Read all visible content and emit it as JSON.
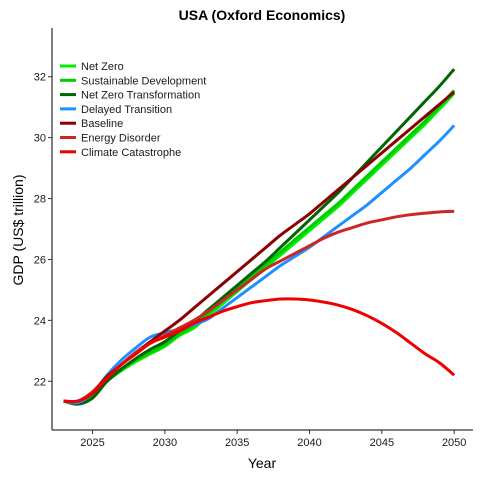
{
  "chart_data": {
    "type": "line",
    "title": "USA (Oxford Economics)",
    "xlabel": "Year",
    "ylabel": "GDP (US$ trillion)",
    "xlim": [
      2022.2,
      2051.3
    ],
    "ylim": [
      20.4,
      33.6
    ],
    "xticks": [
      2025,
      2030,
      2035,
      2040,
      2045,
      2050
    ],
    "yticks": [
      22,
      24,
      26,
      28,
      30,
      32
    ],
    "grid": false,
    "legend_position": "top-left",
    "x": [
      2023,
      2024,
      2025,
      2026,
      2027,
      2028,
      2029,
      2030,
      2031,
      2032,
      2033,
      2034,
      2035,
      2036,
      2037,
      2038,
      2039,
      2040,
      2041,
      2042,
      2043,
      2044,
      2045,
      2046,
      2047,
      2048,
      2049,
      2050
    ],
    "series": [
      {
        "name": "Net Zero",
        "color": "#00ee00",
        "values": [
          21.35,
          21.3,
          21.5,
          22.0,
          22.35,
          22.65,
          22.9,
          23.15,
          23.5,
          23.75,
          24.15,
          24.55,
          24.95,
          25.35,
          25.75,
          26.15,
          26.55,
          26.95,
          27.35,
          27.75,
          28.2,
          28.65,
          29.1,
          29.55,
          30.0,
          30.45,
          30.95,
          31.45
        ]
      },
      {
        "name": "Sustainable Development",
        "color": "#00cd00",
        "values": [
          21.35,
          21.3,
          21.5,
          22.0,
          22.4,
          22.7,
          22.95,
          23.2,
          23.55,
          23.85,
          24.25,
          24.65,
          25.05,
          25.45,
          25.85,
          26.25,
          26.65,
          27.05,
          27.45,
          27.85,
          28.3,
          28.75,
          29.2,
          29.65,
          30.1,
          30.55,
          31.05,
          31.55
        ]
      },
      {
        "name": "Net Zero Transformation",
        "color": "#006400",
        "values": [
          21.35,
          21.25,
          21.45,
          22.0,
          22.4,
          22.75,
          23.05,
          23.3,
          23.65,
          23.95,
          24.35,
          24.75,
          25.15,
          25.55,
          25.95,
          26.4,
          26.85,
          27.3,
          27.75,
          28.2,
          28.7,
          29.2,
          29.7,
          30.2,
          30.7,
          31.2,
          31.7,
          32.25
        ]
      },
      {
        "name": "Delayed Transition",
        "color": "#1e90ff",
        "values": [
          21.35,
          21.3,
          21.6,
          22.2,
          22.7,
          23.1,
          23.45,
          23.6,
          23.7,
          23.85,
          24.05,
          24.4,
          24.75,
          25.1,
          25.45,
          25.8,
          26.1,
          26.4,
          26.75,
          27.1,
          27.45,
          27.8,
          28.2,
          28.6,
          29.0,
          29.45,
          29.9,
          30.4
        ]
      },
      {
        "name": "Baseline",
        "color": "#8b0000",
        "values": [
          21.35,
          21.35,
          21.65,
          22.15,
          22.55,
          22.95,
          23.3,
          23.65,
          24.0,
          24.4,
          24.8,
          25.2,
          25.6,
          26.0,
          26.4,
          26.8,
          27.15,
          27.5,
          27.9,
          28.3,
          28.7,
          29.1,
          29.5,
          29.9,
          30.3,
          30.7,
          31.1,
          31.5
        ]
      },
      {
        "name": "Energy Disorder",
        "color": "#cd2626",
        "values": [
          21.35,
          21.35,
          21.65,
          22.1,
          22.55,
          22.95,
          23.25,
          23.5,
          23.75,
          24.0,
          24.3,
          24.65,
          25.0,
          25.35,
          25.7,
          25.95,
          26.2,
          26.45,
          26.7,
          26.9,
          27.05,
          27.2,
          27.3,
          27.4,
          27.47,
          27.52,
          27.56,
          27.58
        ]
      },
      {
        "name": "Climate Catastrophe",
        "color": "#ee0000",
        "values": [
          21.35,
          21.35,
          21.6,
          22.1,
          22.55,
          22.9,
          23.25,
          23.45,
          23.65,
          23.9,
          24.1,
          24.3,
          24.45,
          24.58,
          24.65,
          24.7,
          24.7,
          24.67,
          24.6,
          24.5,
          24.35,
          24.15,
          23.9,
          23.6,
          23.25,
          22.9,
          22.6,
          22.2
        ]
      }
    ]
  }
}
